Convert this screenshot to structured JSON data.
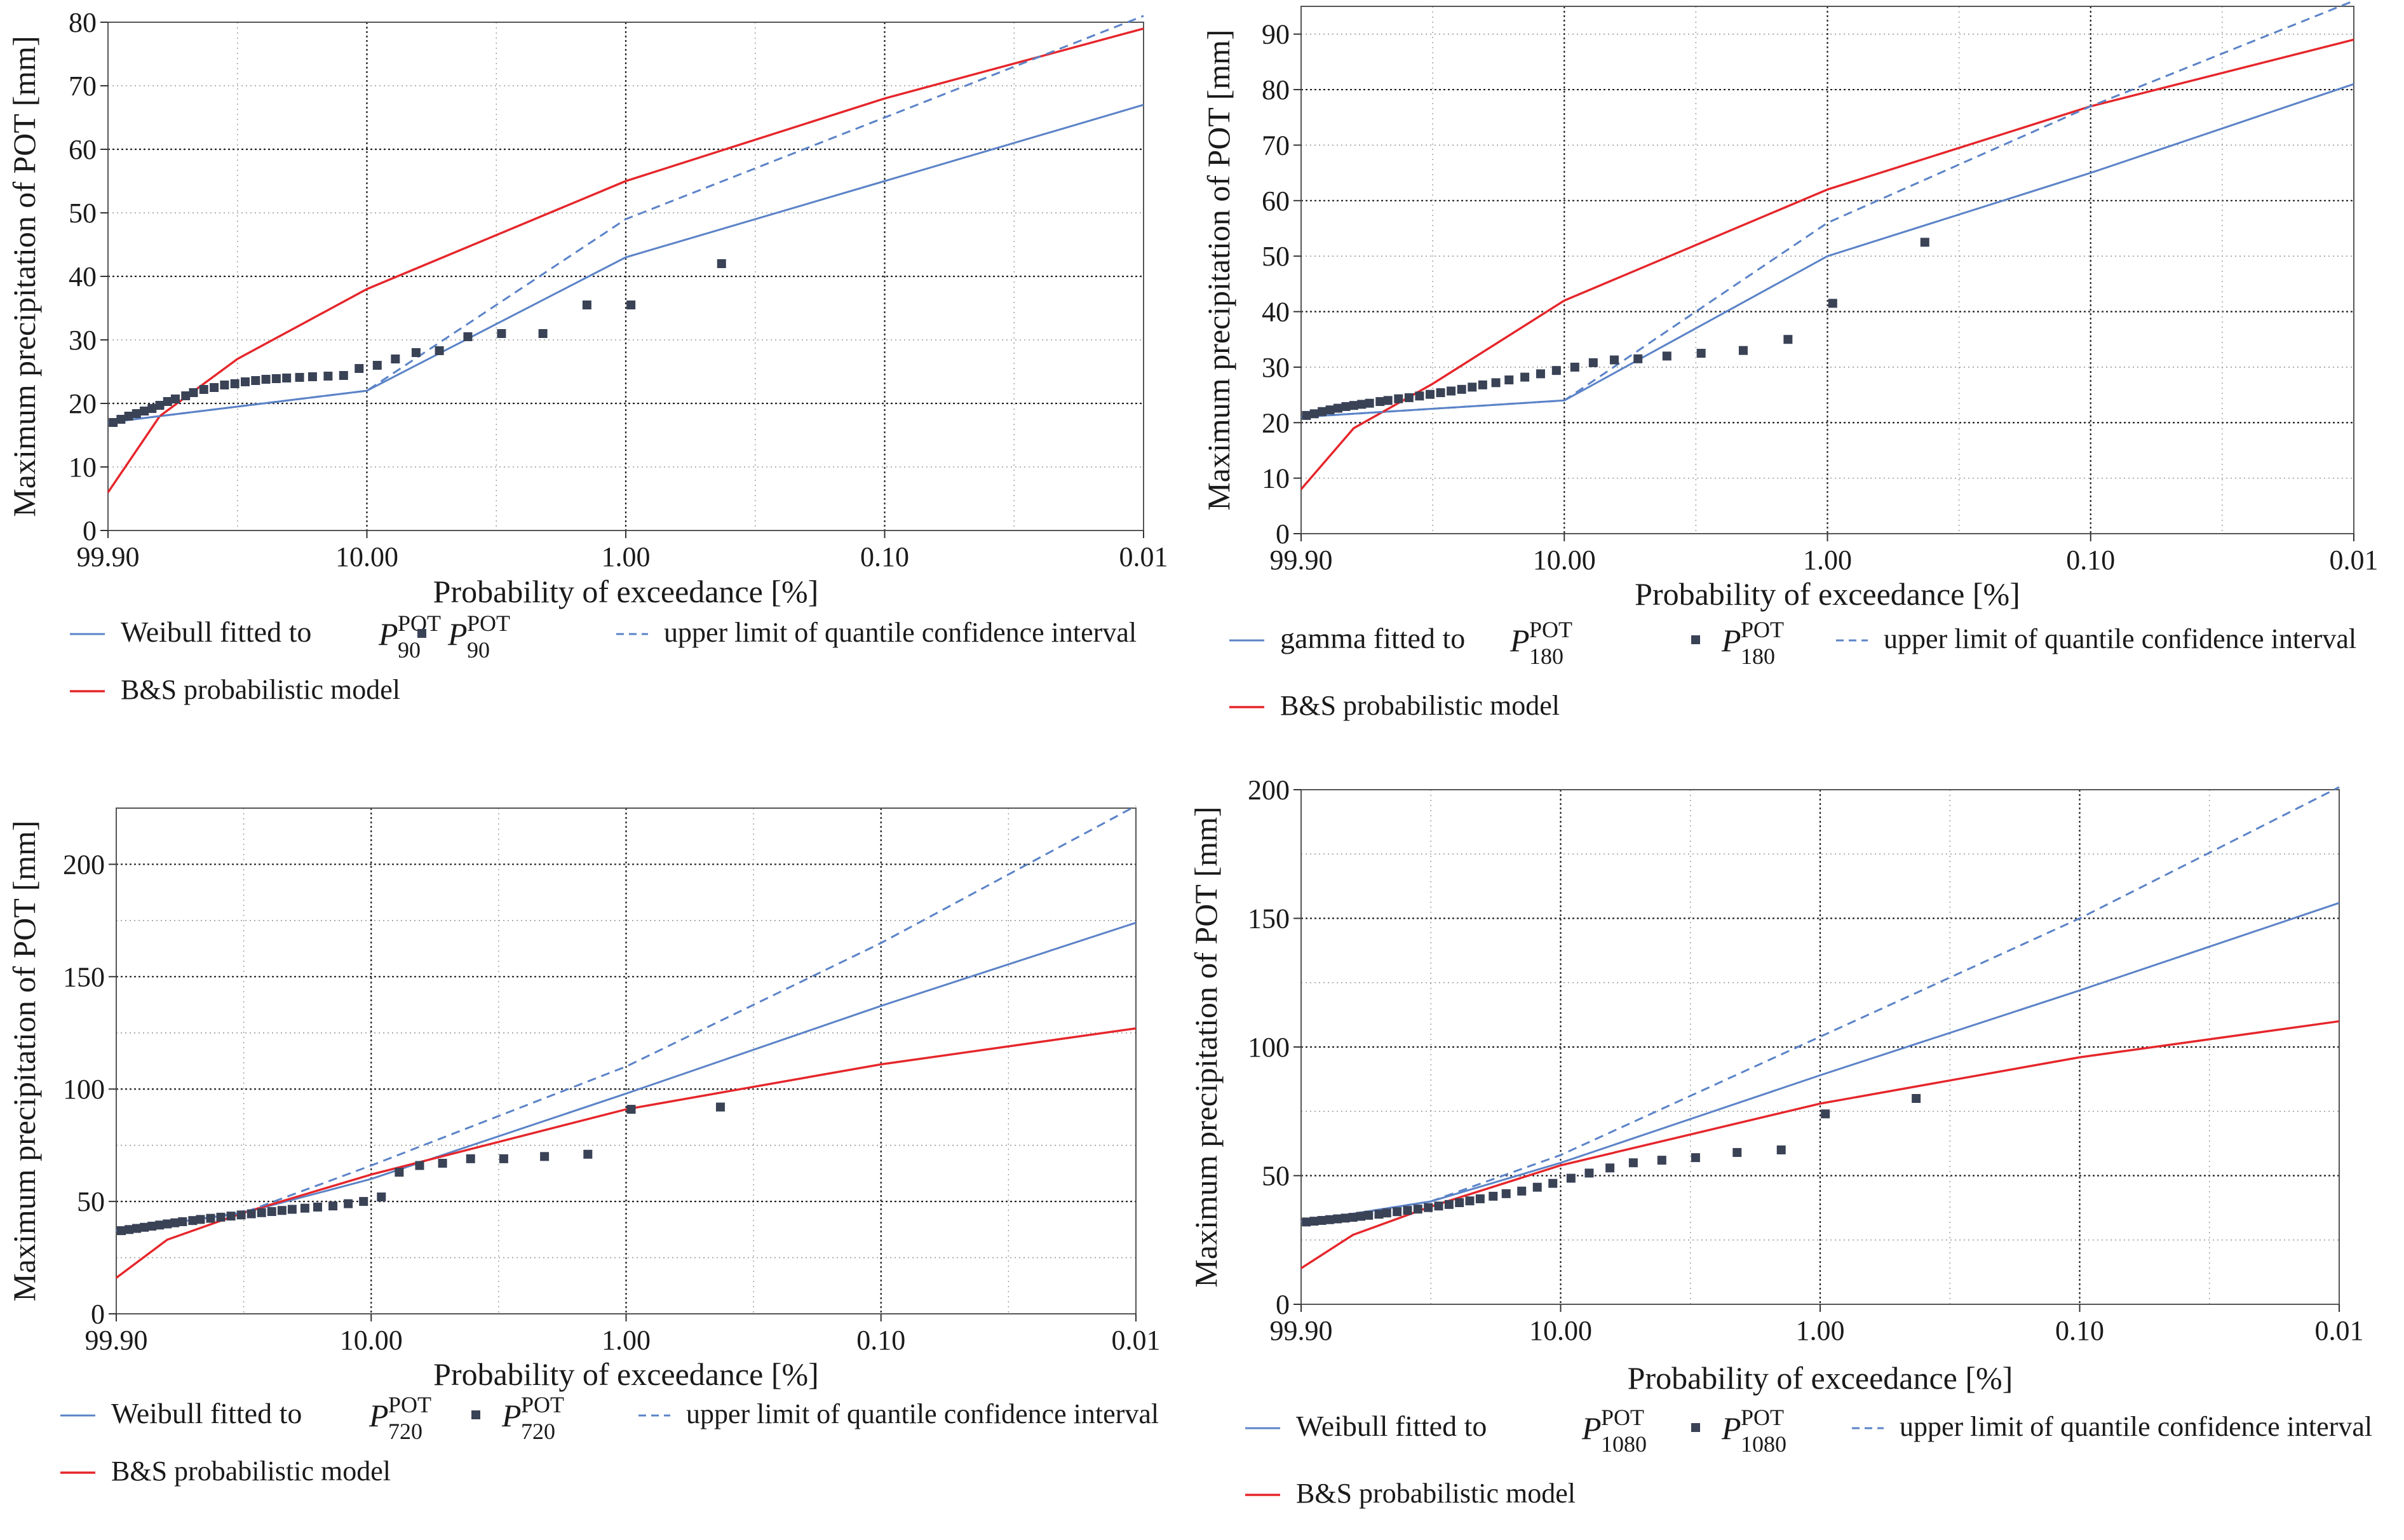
{
  "colors": {
    "weibull_line": "#5b83c7",
    "model_line": "#e5262b",
    "upper_limit_line": "#5b83c7",
    "points": "#3a4256",
    "grid_dark": "#222222",
    "grid_light": "#9a9a9a"
  },
  "chart_data": [
    {
      "id": "p90",
      "type": "scatter",
      "xlabel": "Probability of exceedance [%]",
      "ylabel": "Maximum precipitation of POT [mm]",
      "x_ticks": [
        "99.90",
        "10.00",
        "1.00",
        "0.10",
        "0.01"
      ],
      "x_axis": "reduced probability scale, labels as printed",
      "y_ticks": [
        "0",
        "10",
        "20",
        "30",
        "40",
        "50",
        "60",
        "70",
        "80"
      ],
      "ylim": [
        0,
        80
      ],
      "legend": {
        "fit_label": "Weibull  fitted to",
        "points_label": "",
        "upper_label": "upper limit of quantile confidence interval",
        "model_label": "B&S  probabilistic model",
        "symbol": "P",
        "sup": "POT",
        "sub": "90"
      },
      "series": [
        {
          "name": "Weibull fitted",
          "style": "solid",
          "x": [
            0,
            1,
            2,
            3,
            4
          ],
          "y": [
            17,
            22,
            43,
            55,
            67
          ]
        },
        {
          "name": "B&S probabilistic model",
          "style": "solid",
          "x": [
            0,
            0.2,
            0.5,
            1,
            2,
            3,
            4
          ],
          "y": [
            6,
            18,
            27,
            38,
            55,
            68,
            79
          ]
        },
        {
          "name": "upper limit of quantile confidence interval",
          "style": "dashed",
          "x": [
            0,
            1,
            2,
            3,
            4
          ],
          "y": [
            17,
            22,
            49,
            65,
            81
          ]
        }
      ],
      "points": {
        "x": [
          0.02,
          0.05,
          0.08,
          0.11,
          0.14,
          0.17,
          0.2,
          0.23,
          0.26,
          0.3,
          0.33,
          0.37,
          0.41,
          0.45,
          0.49,
          0.53,
          0.57,
          0.61,
          0.65,
          0.69,
          0.74,
          0.79,
          0.85,
          0.91,
          0.97,
          1.04,
          1.11,
          1.19,
          1.28,
          1.39,
          1.52,
          1.68,
          1.85,
          2.02,
          2.37
        ],
        "y": [
          17,
          17.5,
          18,
          18.4,
          18.8,
          19.2,
          19.7,
          20.3,
          20.7,
          21.2,
          21.7,
          22.2,
          22.5,
          22.9,
          23.1,
          23.4,
          23.6,
          23.8,
          23.9,
          24,
          24.1,
          24.2,
          24.3,
          24.4,
          25.5,
          26,
          27,
          28,
          28.3,
          30.5,
          31,
          31,
          35.5,
          35.5,
          42
        ]
      }
    },
    {
      "id": "p180",
      "type": "scatter",
      "xlabel": "Probability of exceedance [%]",
      "ylabel": "Maximum precipitation of POT [mm]",
      "x_ticks": [
        "99.90",
        "10.00",
        "1.00",
        "0.10",
        "0.01"
      ],
      "y_ticks": [
        "0",
        "10",
        "20",
        "30",
        "40",
        "50",
        "60",
        "70",
        "80",
        "90"
      ],
      "ylim": [
        0,
        95
      ],
      "legend": {
        "fit_label": "gamma  fitted to",
        "points_label": "",
        "upper_label": "upper limit of quantile confidence interval",
        "model_label": "B&S  probabilistic model",
        "symbol": "P",
        "sup": "POT",
        "sub": "180"
      },
      "series": [
        {
          "name": "gamma fitted",
          "style": "solid",
          "x": [
            0,
            1,
            2,
            3,
            4
          ],
          "y": [
            21,
            24,
            50,
            65,
            81
          ]
        },
        {
          "name": "B&S probabilistic model",
          "style": "solid",
          "x": [
            0,
            0.2,
            0.5,
            1,
            2,
            3,
            4
          ],
          "y": [
            8,
            19,
            27,
            42,
            62,
            77,
            89
          ]
        },
        {
          "name": "upper limit of quantile confidence interval",
          "style": "dashed",
          "x": [
            0,
            1,
            2,
            3,
            4
          ],
          "y": [
            21,
            24,
            56,
            77,
            96
          ]
        }
      ],
      "points": {
        "x": [
          0.02,
          0.05,
          0.08,
          0.11,
          0.14,
          0.17,
          0.2,
          0.23,
          0.26,
          0.3,
          0.33,
          0.37,
          0.41,
          0.45,
          0.49,
          0.53,
          0.57,
          0.61,
          0.65,
          0.69,
          0.74,
          0.79,
          0.85,
          0.91,
          0.97,
          1.04,
          1.11,
          1.19,
          1.28,
          1.39,
          1.52,
          1.68,
          1.85,
          2.02,
          2.37
        ],
        "y": [
          21.3,
          21.6,
          22,
          22.3,
          22.6,
          22.9,
          23.1,
          23.3,
          23.5,
          23.8,
          24,
          24.3,
          24.5,
          24.8,
          25.1,
          25.4,
          25.7,
          26,
          26.4,
          26.8,
          27.2,
          27.7,
          28.2,
          28.8,
          29.4,
          30,
          30.8,
          31.3,
          31.5,
          32,
          32.5,
          33,
          35,
          41.5,
          52.5
        ]
      }
    },
    {
      "id": "p720",
      "type": "scatter",
      "xlabel": "Probability of exceedance [%]",
      "ylabel": "Maximum precipitation of POT [mm]",
      "x_ticks": [
        "99.90",
        "10.00",
        "1.00",
        "0.10",
        "0.01"
      ],
      "y_ticks": [
        "0",
        "50",
        "100",
        "150",
        "200"
      ],
      "ylim": [
        0,
        225
      ],
      "legend": {
        "fit_label": "Weibull  fitted to",
        "points_label": "",
        "upper_label": "upper limit of quantile confidence interval",
        "model_label": "B&S probabilistic model",
        "symbol": "P",
        "sup": "POT",
        "sub": "720"
      },
      "series": [
        {
          "name": "Weibull fitted",
          "style": "solid",
          "x": [
            0,
            0.5,
            1,
            2,
            3,
            4
          ],
          "y": [
            37,
            45,
            60,
            98,
            137,
            174
          ]
        },
        {
          "name": "B&S probabilistic model",
          "style": "solid",
          "x": [
            0,
            0.2,
            0.5,
            1,
            2,
            3,
            4
          ],
          "y": [
            16,
            33,
            45,
            62,
            91,
            111,
            127
          ]
        },
        {
          "name": "upper limit of quantile confidence interval",
          "style": "dashed",
          "x": [
            0,
            0.5,
            1,
            2,
            3,
            4
          ],
          "y": [
            37,
            45,
            66,
            110,
            165,
            226
          ]
        }
      ],
      "points": {
        "x": [
          0.02,
          0.05,
          0.08,
          0.11,
          0.14,
          0.17,
          0.2,
          0.23,
          0.26,
          0.3,
          0.33,
          0.37,
          0.41,
          0.45,
          0.49,
          0.53,
          0.57,
          0.61,
          0.65,
          0.69,
          0.74,
          0.79,
          0.85,
          0.91,
          0.97,
          1.04,
          1.11,
          1.19,
          1.28,
          1.39,
          1.52,
          1.68,
          1.85,
          2.02,
          2.37
        ],
        "y": [
          37,
          37.5,
          38,
          38.5,
          39,
          39.5,
          40,
          40.5,
          41,
          41.5,
          42,
          42.5,
          43,
          43.5,
          44,
          44.5,
          45,
          45.5,
          46,
          46.5,
          47,
          47.5,
          48,
          49,
          50,
          52,
          63,
          66,
          67,
          69,
          69,
          70,
          71,
          91,
          92
        ]
      }
    },
    {
      "id": "p1080",
      "type": "scatter",
      "xlabel": "Probability of exceedance [%]",
      "ylabel": "Maximum precipitation of POT [mm]",
      "x_ticks": [
        "99.90",
        "10.00",
        "1.00",
        "0.10",
        "0.01"
      ],
      "y_ticks": [
        "0",
        "50",
        "100",
        "150",
        "200"
      ],
      "ylim": [
        0,
        200
      ],
      "legend": {
        "fit_label": "Weibull    fitted to",
        "points_label": "",
        "upper_label": "upper limit of quantile confidence interval",
        "model_label": "B&S probabilistic model",
        "symbol": "P",
        "sup": "POT",
        "sub": "1080"
      },
      "series": [
        {
          "name": "Weibull fitted",
          "style": "solid",
          "x": [
            0,
            0.5,
            1,
            2,
            3,
            4
          ],
          "y": [
            32,
            40,
            55,
            89,
            122,
            156
          ]
        },
        {
          "name": "B&S probabilistic model",
          "style": "solid",
          "x": [
            0,
            0.2,
            0.5,
            1,
            2,
            3,
            4
          ],
          "y": [
            14,
            27,
            38,
            54,
            78,
            96,
            110
          ]
        },
        {
          "name": "upper limit of quantile confidence interval",
          "style": "dashed",
          "x": [
            0,
            0.5,
            1,
            2,
            3,
            4
          ],
          "y": [
            32,
            40,
            58,
            104,
            150,
            201
          ]
        }
      ],
      "points": {
        "x": [
          0.02,
          0.05,
          0.08,
          0.11,
          0.14,
          0.17,
          0.2,
          0.23,
          0.26,
          0.3,
          0.33,
          0.37,
          0.41,
          0.45,
          0.49,
          0.53,
          0.57,
          0.61,
          0.65,
          0.69,
          0.74,
          0.79,
          0.85,
          0.91,
          0.97,
          1.04,
          1.11,
          1.19,
          1.28,
          1.39,
          1.52,
          1.68,
          1.85,
          2.02,
          2.37
        ],
        "y": [
          32,
          32.3,
          32.6,
          32.9,
          33.2,
          33.5,
          33.8,
          34.2,
          34.6,
          35,
          35.5,
          36,
          36.5,
          37,
          37.6,
          38.2,
          38.8,
          39.5,
          40.2,
          41,
          42,
          43,
          44,
          45.5,
          47,
          49,
          51,
          53,
          55,
          56,
          57,
          59,
          60,
          74,
          80
        ]
      }
    }
  ]
}
